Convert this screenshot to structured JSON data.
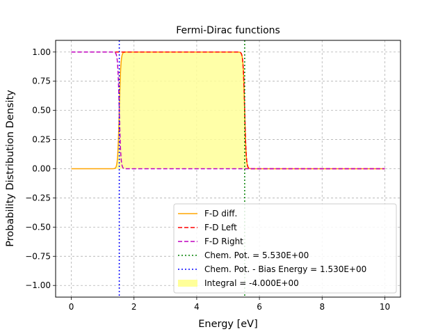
{
  "chart_data": {
    "type": "line",
    "title": "Fermi-Dirac functions",
    "xlabel": "Energy [eV]",
    "ylabel": "Probability Distribution Density",
    "xlim": [
      -0.5,
      10.5
    ],
    "ylim": [
      -1.1,
      1.1
    ],
    "xticks": [
      0,
      2,
      4,
      6,
      8,
      10
    ],
    "xtick_labels": [
      "0",
      "2",
      "4",
      "6",
      "8",
      "10"
    ],
    "yticks": [
      -1.0,
      -0.75,
      -0.5,
      -0.25,
      0.0,
      0.25,
      0.5,
      0.75,
      1.0
    ],
    "ytick_labels": [
      "−1.00",
      "−0.75",
      "−0.50",
      "−0.25",
      "0.00",
      "0.25",
      "0.50",
      "0.75",
      "1.00"
    ],
    "grid": true,
    "legend_position": "lower-right",
    "x_range": [
      0,
      10
    ],
    "chemical_potential_left": 5.53,
    "chemical_potential_right": 1.53,
    "thermal_width_eV": 0.025,
    "series": [
      {
        "name": "F-D diff.",
        "color": "#ffa500",
        "style": "solid",
        "kind": "difference"
      },
      {
        "name": "F-D Left",
        "color": "#ff0000",
        "style": "dashed",
        "kind": "fermi",
        "mu": 5.53
      },
      {
        "name": "F-D Right",
        "color": "#bf00bf",
        "style": "dashed",
        "kind": "fermi",
        "mu": 1.53
      },
      {
        "name": "Chem. Pot. = 5.530E+00",
        "color": "#008000",
        "style": "dotted",
        "kind": "vline",
        "x": 5.53
      },
      {
        "name": "Chem. Pot. - Bias Energy = 1.530E+00",
        "color": "#0000ff",
        "style": "dotted",
        "kind": "vline",
        "x": 1.53
      },
      {
        "name": "Integral = -4.000E+00",
        "color": "#ffff99",
        "style": "fill",
        "kind": "fill"
      }
    ]
  }
}
